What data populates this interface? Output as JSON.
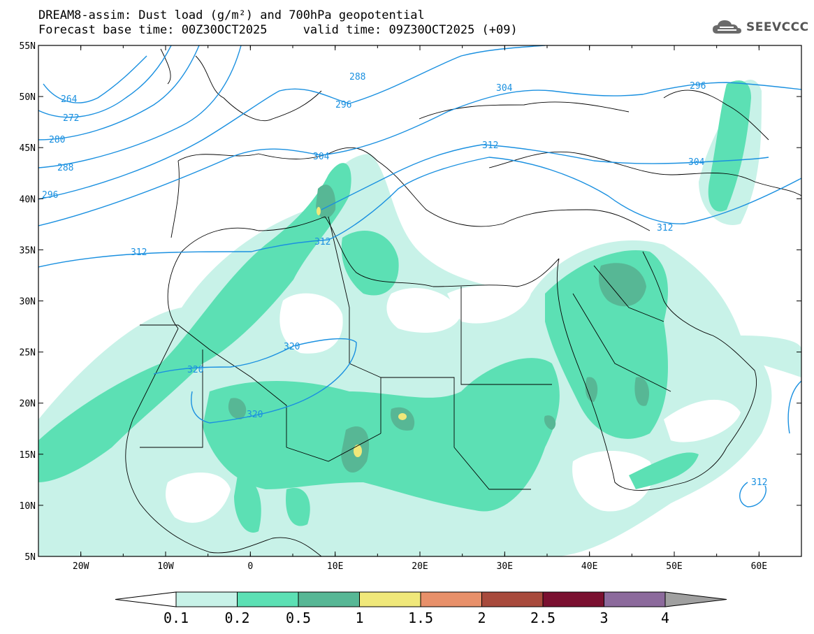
{
  "title": {
    "line1": "DREAM8-assim: Dust load (g/m²) and 700hPa geopotential",
    "line2": "Forecast base time: 00Z30OCT2025     valid time: 09Z30OCT2025 (+09)"
  },
  "logo": {
    "text": "SEEVCCC",
    "icon": "cloud-icon"
  },
  "map": {
    "lon_range": [
      -25,
      65
    ],
    "lat_range": [
      5,
      55
    ],
    "lon_ticks": [
      "20W",
      "10W",
      "0",
      "10E",
      "20E",
      "30E",
      "40E",
      "50E",
      "60E"
    ],
    "lat_ticks": [
      "55N",
      "50N",
      "45N",
      "40N",
      "35N",
      "30N",
      "25N",
      "20N",
      "15N",
      "10N",
      "5N"
    ]
  },
  "contours": {
    "color": "#1a90e0",
    "labels": [
      "264",
      "272",
      "280",
      "288",
      "296",
      "288",
      "296",
      "304",
      "304",
      "312",
      "296",
      "304",
      "312",
      "312",
      "312",
      "320",
      "320",
      "320",
      "312"
    ]
  },
  "colorbar": {
    "levels": [
      "0.1",
      "0.2",
      "0.5",
      "1",
      "1.5",
      "2",
      "2.5",
      "3",
      "4"
    ],
    "colors": [
      "#c8f2e8",
      "#5ce0b4",
      "#57b795",
      "#f0e87a",
      "#e8906a",
      "#a84a3c",
      "#7a1030",
      "#8c6a9c",
      "#a0a0a0"
    ],
    "under_color": "#ffffff"
  }
}
